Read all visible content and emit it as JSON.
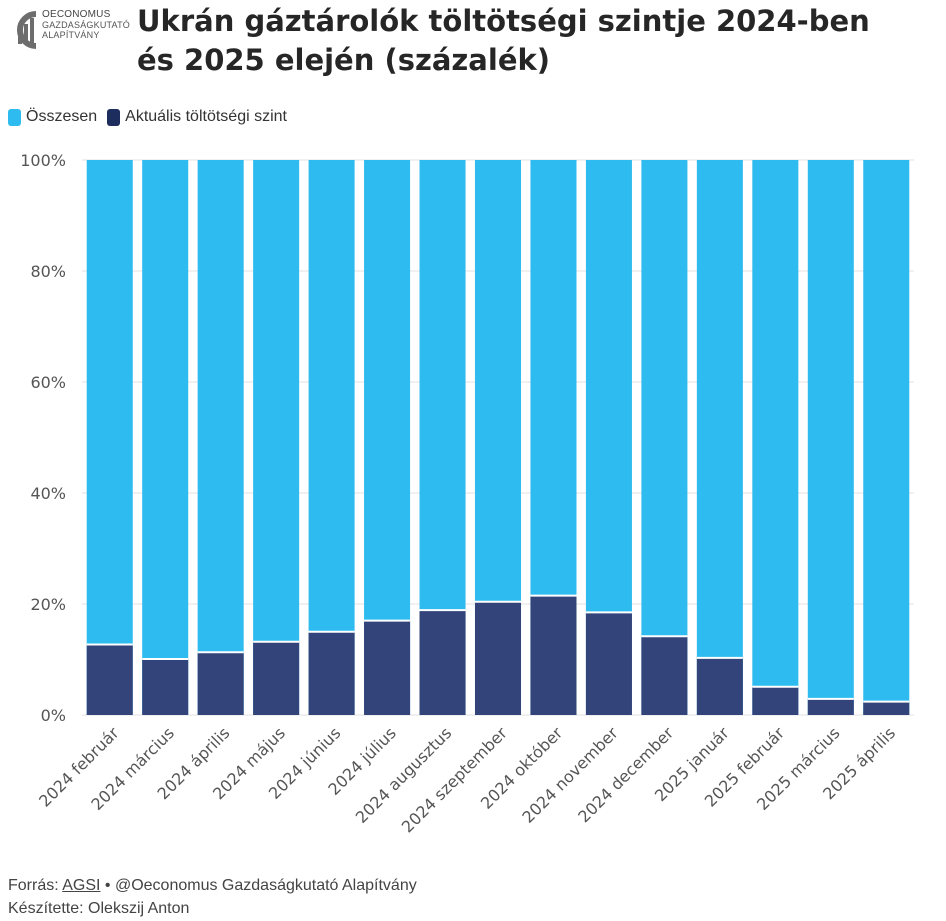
{
  "header": {
    "logo_line1": "OECONOMUS",
    "logo_line2": "GAZDASÁGKUTATÓ",
    "logo_line3": "ALAPÍTVÁNY",
    "title_line1": "Ukrán gáztárolók töltötségi szintje 2024-ben",
    "title_line2": "és 2025 elején (százalék)"
  },
  "legend": [
    {
      "label": "Összesen",
      "color": "#2ebcf0"
    },
    {
      "label": "Aktuális töltötségi szint",
      "color": "#1d2d5e"
    }
  ],
  "footer": {
    "source_prefix": "Forrás:",
    "source_link": "AGSI",
    "source_suffix": "• @Oeconomus Gazdaságkutató Alapítvány",
    "author": "Készítette: Olekszij Anton"
  },
  "chart_data": {
    "type": "bar",
    "stacked": true,
    "normalized": true,
    "categories": [
      "2024 február",
      "2024 március",
      "2024 április",
      "2024 május",
      "2024 június",
      "2024 július",
      "2024 augusztus",
      "2024 szeptember",
      "2024 október",
      "2024 november",
      "2024 december",
      "2025 január",
      "2025 február",
      "2025 március",
      "2025 április"
    ],
    "series": [
      {
        "name": "Aktuális töltötségi szint",
        "color": "#33447a",
        "values": [
          12.7,
          10.1,
          11.3,
          13.2,
          15.0,
          17.0,
          18.9,
          20.4,
          21.5,
          18.5,
          14.2,
          10.3,
          5.1,
          2.9,
          2.4
        ]
      },
      {
        "name": "Összesen",
        "color": "#2ebcf0",
        "values": [
          100,
          100,
          100,
          100,
          100,
          100,
          100,
          100,
          100,
          100,
          100,
          100,
          100,
          100,
          100
        ]
      }
    ],
    "y_ticks": [
      "0%",
      "20%",
      "40%",
      "60%",
      "80%",
      "100%"
    ],
    "ylim": [
      0,
      100
    ],
    "grid": true,
    "legend_position": "top-left"
  }
}
